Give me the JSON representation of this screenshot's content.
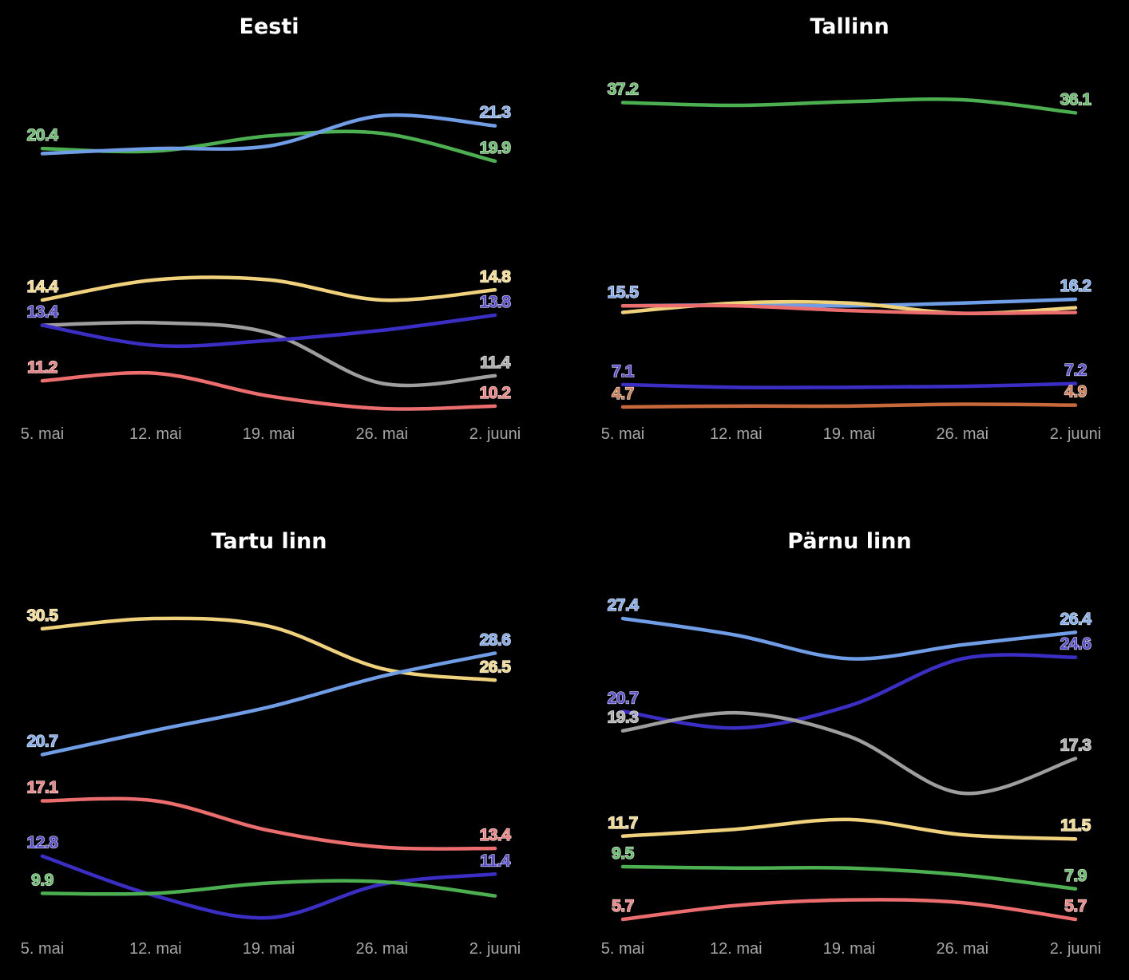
{
  "chart_data": [
    {
      "type": "line",
      "title": "Eesti",
      "categories": [
        "5. mai",
        "12. mai",
        "19. mai",
        "26. mai",
        "2. juuni"
      ],
      "series": [
        {
          "color": "#4caf50",
          "values": [
            20.4,
            20.3,
            20.9,
            21.0,
            19.9
          ],
          "labels": {
            "start": "20.4",
            "end": "19.9"
          }
        },
        {
          "color": "#6f9de6",
          "values": [
            20.2,
            20.4,
            20.5,
            21.7,
            21.3
          ],
          "labels": {
            "end": "21.3"
          }
        },
        {
          "color": "#f0d27c",
          "values": [
            14.4,
            15.2,
            15.2,
            14.4,
            14.8
          ],
          "labels": {
            "start": "14.4",
            "end": "14.8"
          }
        },
        {
          "color": "#9e9e9e",
          "values": [
            13.4,
            13.5,
            13.1,
            11.1,
            11.4
          ],
          "labels": {
            "end": "11.4"
          }
        },
        {
          "color": "#3b2ec4",
          "values": [
            13.4,
            12.6,
            12.8,
            13.2,
            13.8
          ],
          "labels": {
            "start": "13.4",
            "end": "13.8"
          }
        },
        {
          "color": "#ec6d6d",
          "values": [
            11.2,
            11.5,
            10.6,
            10.1,
            10.2
          ],
          "labels": {
            "start": "11.2",
            "end": "10.2"
          }
        }
      ]
    },
    {
      "type": "line",
      "title": "Tallinn",
      "categories": [
        "5. mai",
        "12. mai",
        "19. mai",
        "26. mai",
        "2. juuni"
      ],
      "series": [
        {
          "color": "#4caf50",
          "values": [
            37.2,
            36.9,
            37.3,
            37.5,
            36.1
          ],
          "labels": {
            "start": "37.2",
            "end": "36.1"
          }
        },
        {
          "color": "#6f9de6",
          "values": [
            15.5,
            15.6,
            15.5,
            15.8,
            16.2
          ],
          "labels": {
            "start": "15.5",
            "end": "16.2"
          }
        },
        {
          "color": "#f0d27c",
          "values": [
            14.8,
            15.8,
            15.8,
            14.7,
            15.3
          ],
          "labels": {}
        },
        {
          "color": "#ec6d6d",
          "values": [
            15.5,
            15.5,
            15.0,
            14.7,
            14.8
          ],
          "labels": {}
        },
        {
          "color": "#3b2ec4",
          "values": [
            7.1,
            6.8,
            6.8,
            6.9,
            7.2
          ],
          "labels": {
            "start": "7.1",
            "end": "7.2"
          }
        },
        {
          "color": "#c8693c",
          "values": [
            4.7,
            4.8,
            4.8,
            5.0,
            4.9
          ],
          "labels": {
            "start": "4.7",
            "end": "4.9"
          }
        }
      ]
    },
    {
      "type": "line",
      "title": "Tartu linn",
      "categories": [
        "5. mai",
        "12. mai",
        "19. mai",
        "26. mai",
        "2. juuni"
      ],
      "series": [
        {
          "color": "#f0d27c",
          "values": [
            30.5,
            31.3,
            30.7,
            27.4,
            26.5
          ],
          "labels": {
            "start": "30.5",
            "end": "26.5"
          }
        },
        {
          "color": "#6f9de6",
          "values": [
            20.7,
            22.6,
            24.4,
            26.8,
            28.6
          ],
          "labels": {
            "start": "20.7",
            "end": "28.6"
          }
        },
        {
          "color": "#ec6d6d",
          "values": [
            17.1,
            17.1,
            14.8,
            13.5,
            13.4
          ],
          "labels": {
            "start": "17.1",
            "end": "13.4"
          }
        },
        {
          "color": "#3b2ec4",
          "values": [
            12.8,
            9.7,
            8.0,
            10.6,
            11.4
          ],
          "labels": {
            "start": "12.8",
            "end": "11.4"
          }
        },
        {
          "color": "#4caf50",
          "values": [
            9.9,
            9.9,
            10.7,
            10.8,
            9.7
          ],
          "labels": {
            "start": "9.9"
          }
        }
      ]
    },
    {
      "type": "line",
      "title": "Pärnu linn",
      "categories": [
        "5. mai",
        "12. mai",
        "19. mai",
        "26. mai",
        "2. juuni"
      ],
      "series": [
        {
          "color": "#6f9de6",
          "values": [
            27.4,
            26.2,
            24.5,
            25.5,
            26.4
          ],
          "labels": {
            "start": "27.4",
            "end": "26.4"
          }
        },
        {
          "color": "#3b2ec4",
          "values": [
            20.7,
            19.5,
            21.1,
            24.5,
            24.6
          ],
          "labels": {
            "start": "20.7",
            "end": "24.6"
          }
        },
        {
          "color": "#9e9e9e",
          "values": [
            19.3,
            20.6,
            18.9,
            14.8,
            17.3
          ],
          "labels": {
            "start": "19.3",
            "end": "17.3"
          }
        },
        {
          "color": "#f0d27c",
          "values": [
            11.7,
            12.2,
            12.9,
            11.8,
            11.5
          ],
          "labels": {
            "start": "11.7",
            "end": "11.5"
          }
        },
        {
          "color": "#4caf50",
          "values": [
            9.5,
            9.4,
            9.4,
            8.9,
            7.9
          ],
          "labels": {
            "start": "9.5",
            "end": "7.9"
          }
        },
        {
          "color": "#ec6d6d",
          "values": [
            5.7,
            6.7,
            7.1,
            6.9,
            5.7
          ],
          "labels": {
            "start": "5.7",
            "end": "5.7"
          }
        }
      ]
    }
  ]
}
